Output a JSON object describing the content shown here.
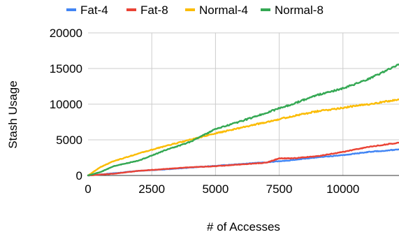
{
  "chart_data": {
    "type": "line",
    "xlabel": "# of Accesses",
    "ylabel": "Stash Usage",
    "xlim": [
      0,
      12200
    ],
    "ylim": [
      0,
      20000
    ],
    "x_ticks": [
      0,
      2500,
      5000,
      7500,
      10000
    ],
    "y_ticks": [
      0,
      5000,
      10000,
      15000,
      20000
    ],
    "x_tick_labels": [
      "0",
      "2500",
      "5000",
      "7500",
      "10000"
    ],
    "y_tick_labels": [
      "0",
      "5000",
      "10000",
      "15000",
      "20000"
    ],
    "grid": "vertical",
    "legend_position": "top",
    "series": [
      {
        "name": "Fat-4",
        "color": "#4285F4",
        "x": [
          0,
          1000,
          2000,
          3000,
          4000,
          5000,
          6000,
          7000,
          8000,
          9000,
          10000,
          11000,
          12200
        ],
        "y": [
          0,
          300,
          650,
          850,
          1100,
          1350,
          1600,
          1850,
          2150,
          2550,
          2850,
          3300,
          3650
        ]
      },
      {
        "name": "Fat-8",
        "color": "#EA4335",
        "x": [
          0,
          1000,
          2000,
          3000,
          4000,
          5000,
          6000,
          7000,
          7500,
          8000,
          9000,
          10000,
          11000,
          12200
        ],
        "y": [
          0,
          250,
          650,
          900,
          1150,
          1300,
          1550,
          1800,
          2400,
          2400,
          2700,
          3300,
          4000,
          4600
        ]
      },
      {
        "name": "Normal-4",
        "color": "#FBBC04",
        "x": [
          0,
          500,
          1000,
          2000,
          3000,
          4000,
          5000,
          6000,
          7000,
          8000,
          9000,
          10000,
          11000,
          12200
        ],
        "y": [
          0,
          1200,
          2000,
          3100,
          4100,
          5000,
          5900,
          6700,
          7500,
          8300,
          9000,
          9500,
          10000,
          10650
        ]
      },
      {
        "name": "Normal-8",
        "color": "#34A853",
        "x": [
          0,
          500,
          1000,
          2000,
          3000,
          4000,
          5000,
          6000,
          7000,
          8000,
          9000,
          10000,
          11000,
          12200
        ],
        "y": [
          0,
          500,
          1300,
          2100,
          3500,
          4700,
          6500,
          7600,
          8800,
          10000,
          11300,
          12200,
          13500,
          15600
        ]
      }
    ]
  }
}
